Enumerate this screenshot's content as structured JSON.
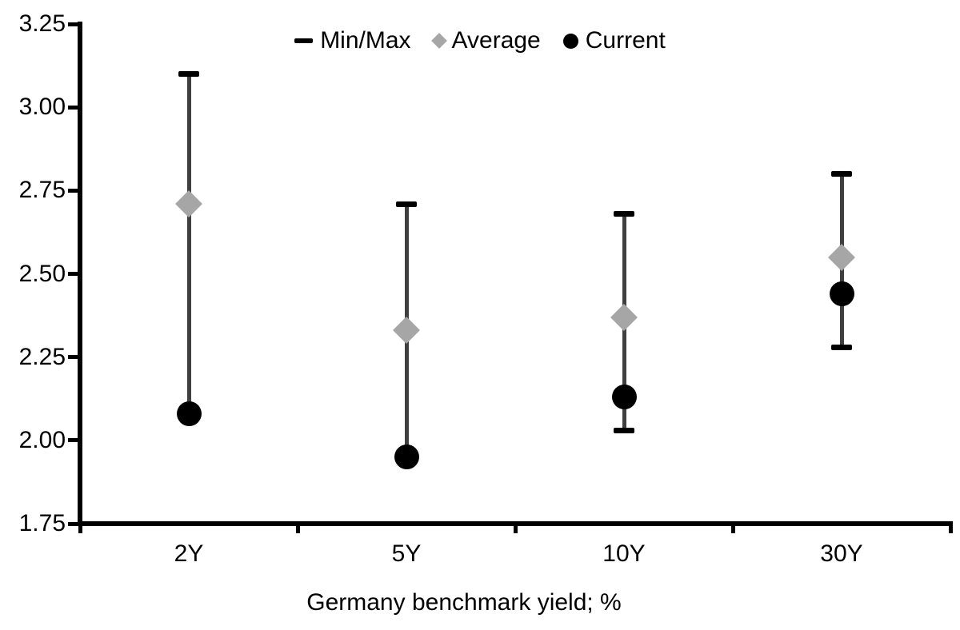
{
  "chart_data": {
    "type": "scatter",
    "title": "",
    "xlabel": "Germany benchmark yield; %",
    "ylabel": "",
    "categories": [
      "2Y",
      "5Y",
      "10Y",
      "30Y"
    ],
    "ylim": [
      1.75,
      3.25
    ],
    "yticks": [
      3.25,
      3.0,
      2.75,
      2.5,
      2.25,
      2.0,
      1.75
    ],
    "grid": false,
    "legend_position": "top-center",
    "legend": [
      "Min/Max",
      "Average",
      "Current"
    ],
    "series": [
      {
        "name": "Min/Max",
        "type": "range",
        "min": [
          2.08,
          1.95,
          2.03,
          2.28
        ],
        "max": [
          3.1,
          2.71,
          2.68,
          2.8
        ]
      },
      {
        "name": "Average",
        "type": "point",
        "marker": "diamond",
        "values": [
          2.71,
          2.33,
          2.37,
          2.55
        ]
      },
      {
        "name": "Current",
        "type": "point",
        "marker": "circle",
        "values": [
          2.08,
          1.95,
          2.13,
          2.44
        ]
      }
    ],
    "colors": {
      "minmax_cap": "#000000",
      "range_line": "#3f3f3f",
      "average": "#a6a6a6",
      "current": "#000000",
      "text": "#000000"
    }
  }
}
